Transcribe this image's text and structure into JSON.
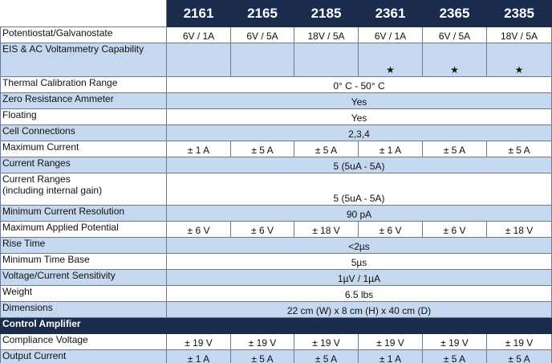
{
  "table": {
    "columns": [
      "2161",
      "2165",
      "2185",
      "2361",
      "2365",
      "2385"
    ],
    "rows": [
      {
        "label": "Potentiostat/Galvanostate",
        "cells": [
          "6V / 1A",
          "6V / 5A",
          "18V / 5A",
          "6V / 1A",
          "6V / 5A",
          "18V / 5A"
        ]
      },
      {
        "label": "EIS & AC Voltammetry Capability",
        "cells": [
          "",
          "",
          "",
          "★",
          "★",
          "★"
        ]
      },
      {
        "label": "Thermal Calibration Range",
        "cells": [
          "0° C - 50° C"
        ]
      },
      {
        "label": "Zero Resistance Ammeter",
        "cells": [
          "Yes"
        ]
      },
      {
        "label": "Floating",
        "cells": [
          "Yes"
        ]
      },
      {
        "label": "Cell Connections",
        "cells": [
          "2,3,4"
        ]
      },
      {
        "label": "Maximum Current",
        "cells": [
          "± 1 A",
          "± 5 A",
          "± 5 A",
          "± 1 A",
          "± 5 A",
          "± 5 A"
        ]
      },
      {
        "label": "Current Ranges",
        "cells": [
          "5 (5uA - 5A)"
        ]
      },
      {
        "label": "Current Ranges\n(including internal gain)",
        "cells": [
          "5 (5uA - 5A)"
        ]
      },
      {
        "label": "Minimum Current Resolution",
        "cells": [
          "90 pA"
        ]
      },
      {
        "label": "Maximum Applied Potential",
        "cells": [
          "± 6 V",
          "± 6 V",
          "± 18 V",
          "± 6 V",
          "± 6 V",
          "± 18 V"
        ]
      },
      {
        "label": "Rise Time",
        "cells": [
          "<2µs"
        ]
      },
      {
        "label": "Minimum Time Base",
        "cells": [
          "5µs"
        ]
      },
      {
        "label": "Voltage/Current Sensitivity",
        "cells": [
          "1µV / 1µA"
        ]
      },
      {
        "label": "Weight",
        "cells": [
          "6.5 lbs"
        ]
      },
      {
        "label": "Dimensions",
        "cells": [
          "22 cm (W) x 8 cm (H) x 40 cm (D)"
        ]
      },
      {
        "label": "Control Amplifier"
      },
      {
        "label": "Compliance Voltage",
        "cells": [
          "± 19 V",
          "± 19 V",
          "± 19 V",
          "± 19 V",
          "± 19 V",
          "± 19 V"
        ]
      },
      {
        "label": "Output Current",
        "cells": [
          "± 1 A",
          "± 5 A",
          "± 5 A",
          "± 1 A",
          "± 5 A",
          "± 5 A"
        ]
      }
    ]
  }
}
